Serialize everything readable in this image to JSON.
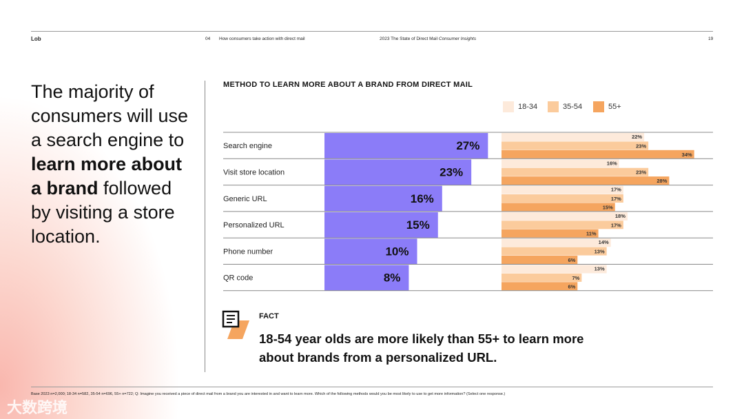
{
  "header": {
    "logo": "Lob",
    "section_num": "04",
    "section_title": "How consumers take action with direct mail",
    "report_title": "2023 The State of Direct Mail",
    "report_subtitle": "Consumer Insights",
    "page": "19"
  },
  "headline": {
    "p1": "The majority of consumers will use a search engine to ",
    "bold1": "learn more about a brand",
    "p2": " followed by visiting a store location."
  },
  "fact": {
    "label": "FACT",
    "text": "18-54 year olds are more likely than 55+ to learn more about brands from a personalized URL."
  },
  "footnote": "Base 2023 n=2,000; 18-34 n=582, 35-54 n=696, 55+ n=722; Q: Imagine you received a piece of direct mail from a brand you are interested in and want to learn more. Which of the following methods would you be most likely to use to get more information?  (Select one response.)",
  "watermark": "大数跨境",
  "colors": {
    "total": "#8b7cf8",
    "a": "#fdeadb",
    "b": "#fbcb9c",
    "c": "#f5a55f"
  },
  "chart_data": {
    "type": "bar",
    "title": "METHOD TO LEARN MORE ABOUT A BRAND FROM DIRECT MAIL",
    "categories": [
      "Search engine",
      "Visit store location",
      "Generic URL",
      "Personalized URL",
      "Phone number",
      "QR code"
    ],
    "total": [
      27,
      23,
      16,
      15,
      10,
      8
    ],
    "series": [
      {
        "name": "18-34",
        "values": [
          22,
          16,
          17,
          18,
          14,
          13
        ]
      },
      {
        "name": "35-54",
        "values": [
          23,
          23,
          17,
          17,
          13,
          7
        ]
      },
      {
        "name": "55+",
        "values": [
          34,
          28,
          15,
          11,
          6,
          6
        ]
      }
    ],
    "legend": "top-right"
  }
}
